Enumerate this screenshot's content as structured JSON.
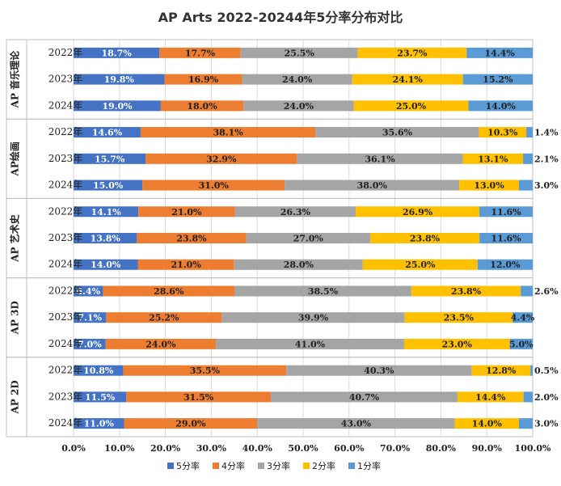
{
  "chart_data": {
    "type": "bar",
    "orientation": "horizontal",
    "stacked": true,
    "normalized": true,
    "title": "AP Arts 2022-20244年5分率分布对比",
    "groups": [
      {
        "label": "AP 音乐理论",
        "categories": [
          "2022年",
          "2023年",
          "2024年"
        ]
      },
      {
        "label": "AP绘画",
        "categories": [
          "2022年",
          "2023年",
          "2024年"
        ]
      },
      {
        "label": "AP 艺术史",
        "categories": [
          "2022年",
          "2023年",
          "2024年"
        ]
      },
      {
        "label": "AP 3D",
        "categories": [
          "2022年",
          "2023年",
          "2024年"
        ]
      },
      {
        "label": "AP 2D",
        "categories": [
          "2022年",
          "2023年",
          "2024年"
        ]
      }
    ],
    "series": [
      {
        "name": "5分率",
        "color": "#4472c4",
        "label_color": "#ffffff",
        "values": [
          18.7,
          19.8,
          19.0,
          14.6,
          15.7,
          15.0,
          14.1,
          13.8,
          14.0,
          6.4,
          7.1,
          7.0,
          10.8,
          11.5,
          11.0
        ],
        "labels": [
          "18.7%",
          "19.8%",
          "19.0%",
          "14.6%",
          "15.7%",
          "15.0%",
          "14.1%",
          "13.8%",
          "14.0%",
          "6.4%",
          "7.1%",
          "7.0%",
          "10.8%",
          "11.5%",
          "11.0%"
        ]
      },
      {
        "name": "4分率",
        "color": "#ed7d31",
        "label_color": "#222222",
        "values": [
          17.7,
          16.9,
          18.0,
          38.1,
          32.9,
          31.0,
          21.0,
          23.8,
          21.0,
          28.6,
          25.2,
          24.0,
          35.5,
          31.5,
          29.0
        ],
        "labels": [
          "17.7%",
          "16.9%",
          "18.0%",
          "38.1%",
          "32.9%",
          "31.0%",
          "21.0%",
          "23.8%",
          "21.0%",
          "28.6%",
          "25.2%",
          "24.0%",
          "35.5%",
          "31.5%",
          "29.0%"
        ]
      },
      {
        "name": "3分率",
        "color": "#a5a5a5",
        "label_color": "#222222",
        "values": [
          25.5,
          24.0,
          24.0,
          35.6,
          36.1,
          38.0,
          26.3,
          27.0,
          28.0,
          38.5,
          39.9,
          41.0,
          40.3,
          40.7,
          43.0
        ],
        "labels": [
          "25.5%",
          "24.0%",
          "24.0%",
          "35.6%",
          "36.1%",
          "38.0%",
          "26.3%",
          "27.0%",
          "28.0%",
          "38.5%",
          "39.9%",
          "41.0%",
          "40.3%",
          "40.7%",
          "43.0%"
        ]
      },
      {
        "name": "2分率",
        "color": "#ffc000",
        "label_color": "#222222",
        "values": [
          23.7,
          24.1,
          25.0,
          10.3,
          13.1,
          13.0,
          26.9,
          23.8,
          25.0,
          23.8,
          23.5,
          23.0,
          12.8,
          14.4,
          14.0
        ],
        "labels": [
          "23.7%",
          "24.1%",
          "25.0%",
          "10.3%",
          "13.1%",
          "13.0%",
          "26.9%",
          "23.8%",
          "25.0%",
          "23.8%",
          "23.5%",
          "23.0%",
          "12.8%",
          "14.4%",
          "14.0%"
        ]
      },
      {
        "name": "1分率",
        "color": "#5b9bd5",
        "label_color": "#222222",
        "values": [
          14.4,
          15.2,
          14.0,
          1.4,
          2.1,
          3.0,
          11.6,
          11.6,
          12.0,
          2.6,
          4.4,
          5.0,
          0.5,
          2.0,
          3.0
        ],
        "labels": [
          "14.4%",
          "15.2%",
          "14.0%",
          "1.4%",
          "2.1%",
          "3.0%",
          "11.6%",
          "11.6%",
          "12.0%",
          "2.6%",
          "4.4%",
          "5.0%",
          "0.5%",
          "2.0%",
          "3.0%"
        ]
      }
    ],
    "xlim": [
      0,
      100
    ],
    "x_ticks": [
      "0.0%",
      "10.0%",
      "20.0%",
      "30.0%",
      "40.0%",
      "50.0%",
      "60.0%",
      "70.0%",
      "80.0%",
      "90.0%",
      "100.0%"
    ],
    "grid": true,
    "legend_position": "bottom"
  }
}
